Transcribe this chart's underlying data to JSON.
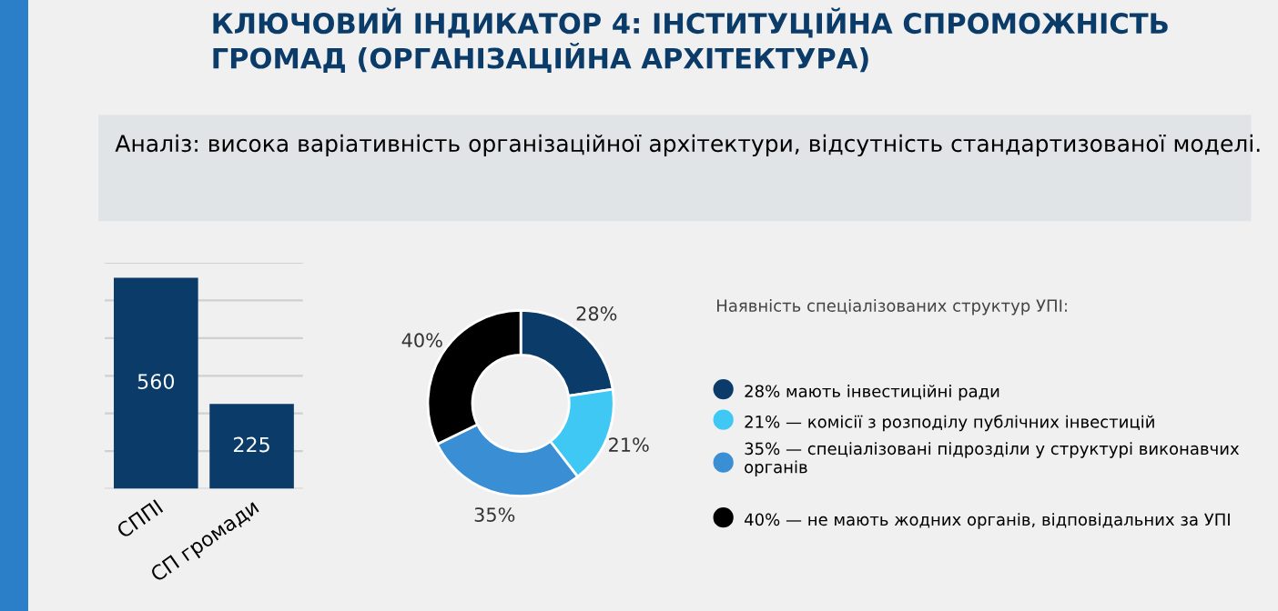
{
  "chart_data": [
    {
      "type": "bar",
      "title": "КЛЮЧОВИЙ ІНДИКАТОР 4: ІНСТИТУЦІЙНА СПРОМОЖНІСТЬ ГРОМАД (ОРГАНІЗАЦІЙНА АРХІТЕКТУРА)",
      "subtitle": "Аналіз: висока варіативність організаційної архітектури, відсутність стандартизованої моделі.",
      "categories": [
        "СППІ",
        "СП громади"
      ],
      "values": [
        560,
        225
      ],
      "color": "#0b3c69",
      "ylim": [
        0,
        600
      ],
      "yticks": [
        {
          "value": 0,
          "label": null
        },
        {
          "value": 100,
          "label": null
        },
        {
          "value": 200,
          "label": null
        },
        {
          "value": 300,
          "label": null
        },
        {
          "value": 400,
          "label": null
        },
        {
          "value": 500,
          "label": null
        },
        {
          "value": 600,
          "label": null
        }
      ],
      "grid": "y",
      "tick_labels": "x",
      "data_labels": true
    },
    {
      "type": "donut",
      "legend_title": "Наявність спеціалізованих структур УПІ:",
      "categories": [
        "28% мають інвестиційні ради",
        "21% — комісії з розподілу публічних інвестицій",
        "35% — спеціалізовані підрозділи у структурі виконавчих органів",
        "40% — не мають жодних органів, відповідальних за УПІ"
      ],
      "values": [
        28,
        21,
        35,
        40
      ],
      "value_labels": [
        "28%",
        "21%",
        "35%",
        "40%"
      ],
      "colors": [
        "#0b3c69",
        "#40c8f4",
        "#3a8fd4",
        "#000000"
      ],
      "legend": "right"
    }
  ]
}
